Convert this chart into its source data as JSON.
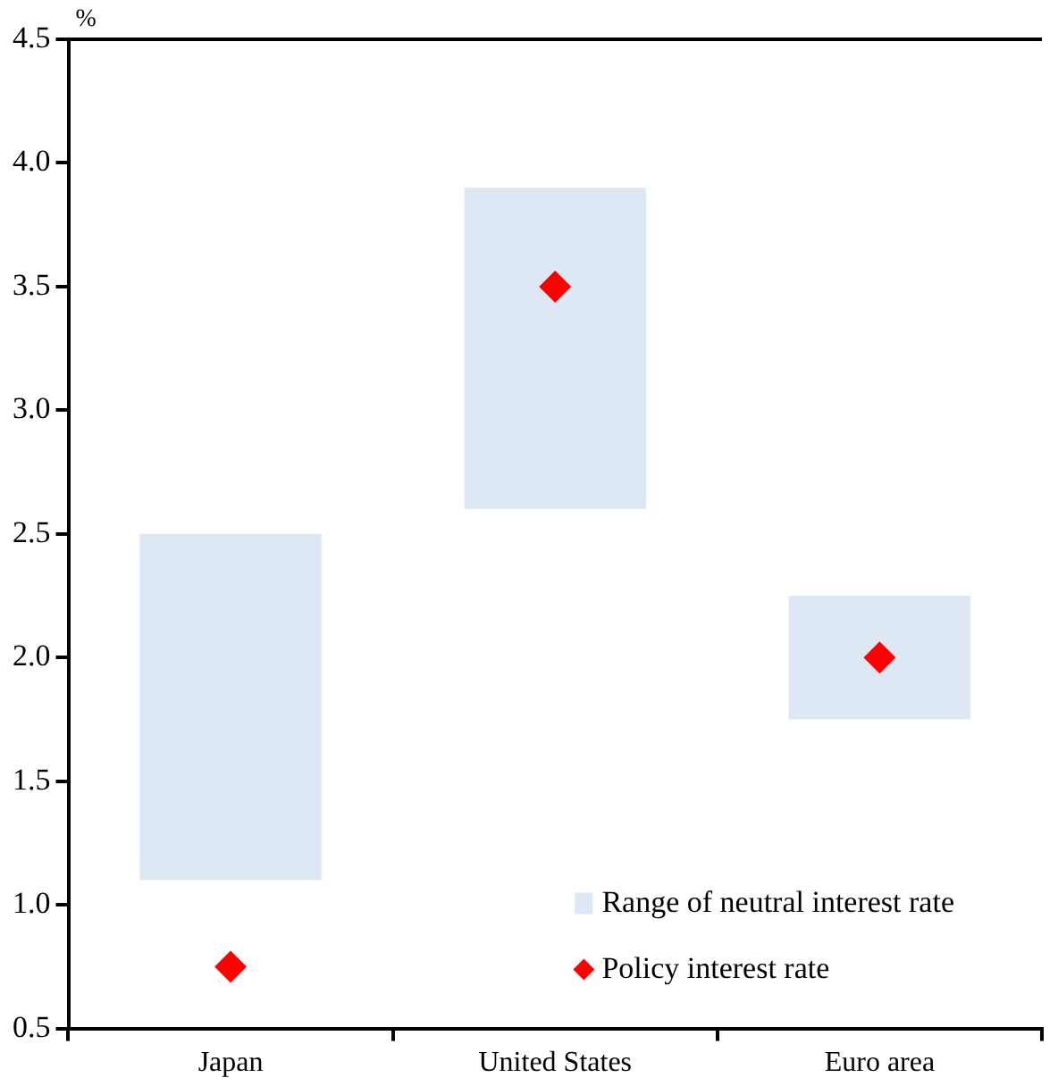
{
  "chart_data": {
    "type": "bar",
    "ylabel": "%",
    "categories": [
      "Japan",
      "United States",
      "Euro area"
    ],
    "series": [
      {
        "name": "Range of neutral interest rate",
        "color": "#dde8f4",
        "base": [
          1.1,
          2.6,
          1.75
        ],
        "values": [
          1.4,
          1.3,
          0.5
        ]
      },
      {
        "name": "Policy interest rate",
        "type": "scatter",
        "color": "#ff0000",
        "x": [
          "Japan",
          "United States",
          "Euro area"
        ],
        "values": [
          0.75,
          3.5,
          2.0
        ],
        "marker": "diamond"
      }
    ],
    "ylim": [
      0.5,
      4.5
    ],
    "yticks": [
      0.5,
      {
        "value": 1,
        "label": "1.0"
      },
      1.5,
      {
        "value": 2,
        "label": "2.0"
      },
      2.5,
      {
        "value": 3,
        "label": "3.0"
      },
      3.5,
      {
        "value": 4,
        "label": "4.0"
      },
      4.5
    ],
    "grid": false,
    "legend": "bottom right"
  }
}
